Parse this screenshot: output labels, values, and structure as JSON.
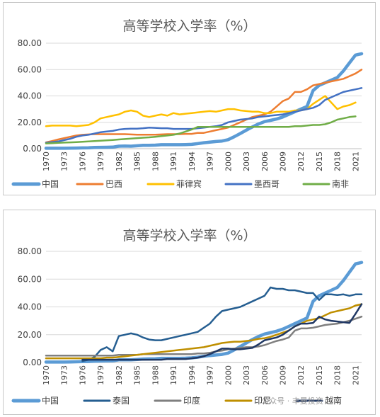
{
  "watermark": "公众号 · 丰曼投资",
  "chart_data": [
    {
      "type": "line",
      "title": "高等学校入学率（%）",
      "ylim": [
        0,
        80
      ],
      "yticks": [
        "0.00",
        "20.00",
        "40.00",
        "60.00",
        "80.00"
      ],
      "x": [
        1970,
        1971,
        1972,
        1973,
        1974,
        1975,
        1976,
        1977,
        1978,
        1979,
        1980,
        1981,
        1982,
        1983,
        1984,
        1985,
        1986,
        1987,
        1988,
        1989,
        1990,
        1991,
        1992,
        1993,
        1994,
        1995,
        1996,
        1997,
        1998,
        1999,
        2000,
        2001,
        2002,
        2003,
        2004,
        2005,
        2006,
        2007,
        2008,
        2009,
        2010,
        2011,
        2012,
        2013,
        2014,
        2015,
        2016,
        2017,
        2018,
        2019,
        2020,
        2021,
        2022
      ],
      "xticks": [
        1970,
        1973,
        1976,
        1979,
        1982,
        1985,
        1988,
        1991,
        1994,
        1997,
        2000,
        2003,
        2006,
        2009,
        2012,
        2015,
        2018,
        2021
      ],
      "legend_position": "bottom",
      "grid": true,
      "series": [
        {
          "name": "中国",
          "color": "#5b9bd5",
          "width": 4.5,
          "values": [
            0.3,
            0.3,
            0.3,
            0.3,
            0.4,
            0.5,
            0.6,
            0.7,
            0.9,
            1.0,
            1.1,
            1.2,
            1.9,
            2.0,
            1.9,
            2.2,
            2.5,
            2.6,
            2.7,
            3.0,
            3.0,
            3.0,
            3.0,
            3.1,
            3.3,
            3.8,
            4.5,
            5.0,
            5.4,
            5.8,
            6.8,
            9.0,
            11.5,
            14.0,
            16.5,
            18.7,
            20.5,
            21.5,
            22.5,
            24.0,
            26.0,
            28.0,
            30.0,
            32.0,
            44.0,
            48.0,
            50.0,
            52.0,
            54.0,
            59.0,
            65.0,
            71.0,
            72.0
          ]
        },
        {
          "name": "巴西",
          "color": "#ed7d31",
          "width": 2.5,
          "values": [
            4.8,
            5.8,
            7.0,
            8.0,
            9.0,
            10.0,
            10.5,
            10.8,
            11.0,
            11.0,
            11.0,
            11.0,
            11.0,
            11.0,
            10.8,
            10.6,
            10.6,
            10.6,
            10.6,
            10.8,
            11.0,
            11.0,
            11.0,
            11.2,
            11.2,
            12.0,
            12.0,
            13.0,
            14.0,
            15.0,
            16.0,
            18.0,
            20.0,
            22.0,
            24.0,
            25.0,
            26.0,
            28.0,
            32.0,
            36.0,
            38.0,
            43.0,
            43.0,
            45.0,
            48.0,
            49.0,
            50.0,
            51.0,
            52.0,
            53.0,
            55.0,
            57.0,
            60.0
          ]
        },
        {
          "name": "菲律宾",
          "color": "#ffc000",
          "width": 2.5,
          "values": [
            17.0,
            17.5,
            17.5,
            17.5,
            17.5,
            17.0,
            17.5,
            18.0,
            20.0,
            23.0,
            24.0,
            25.0,
            26.0,
            28.0,
            29.0,
            28.0,
            25.0,
            24.0,
            25.0,
            26.0,
            25.0,
            27.0,
            26.0,
            26.5,
            27.0,
            27.5,
            28.0,
            28.5,
            28.0,
            29.0,
            30.0,
            30.0,
            29.0,
            28.5,
            28.0,
            28.0,
            27.0,
            27.0,
            28.0,
            28.0,
            28.0,
            29.0,
            29.0,
            30.0,
            34.0,
            37.0,
            40.0,
            35.0,
            30.0,
            32.0,
            33.0,
            35.0,
            null
          ]
        },
        {
          "name": "墨西哥",
          "color": "#4472c4",
          "width": 2.5,
          "values": [
            4.5,
            5.0,
            5.5,
            6.5,
            7.5,
            9.0,
            10.0,
            10.5,
            11.5,
            12.5,
            13.0,
            13.5,
            14.5,
            15.0,
            15.2,
            15.2,
            15.5,
            16.0,
            15.8,
            15.5,
            15.5,
            15.0,
            15.0,
            15.0,
            15.0,
            15.5,
            16.0,
            16.5,
            17.0,
            18.0,
            20.0,
            21.0,
            22.0,
            22.5,
            23.0,
            24.0,
            24.5,
            25.0,
            25.5,
            26.0,
            27.0,
            28.0,
            29.0,
            30.0,
            31.0,
            33.0,
            37.0,
            39.0,
            41.0,
            43.0,
            44.0,
            45.0,
            46.0
          ]
        },
        {
          "name": "南非",
          "color": "#70ad47",
          "width": 2.5,
          "values": [
            4.0,
            4.2,
            4.4,
            4.6,
            4.8,
            5.0,
            5.2,
            5.5,
            5.8,
            6.0,
            6.3,
            6.6,
            7.0,
            7.3,
            7.6,
            8.0,
            8.3,
            8.6,
            9.0,
            9.5,
            10.0,
            10.5,
            11.5,
            13.0,
            14.5,
            16.5,
            16.5,
            16.5,
            16.5,
            16.5,
            16.5,
            16.5,
            16.5,
            16.5,
            16.5,
            16.5,
            16.5,
            16.5,
            16.5,
            16.5,
            16.5,
            17.0,
            17.0,
            17.5,
            18.0,
            18.0,
            18.5,
            20.0,
            22.0,
            23.0,
            24.0,
            24.5,
            null
          ]
        }
      ]
    },
    {
      "type": "line",
      "title": "高等学校入学率（%）",
      "ylim": [
        0,
        80
      ],
      "yticks": [
        "0.00",
        "20.00",
        "40.00",
        "60.00",
        "80.00"
      ],
      "x": [
        1970,
        1971,
        1972,
        1973,
        1974,
        1975,
        1976,
        1977,
        1978,
        1979,
        1980,
        1981,
        1982,
        1983,
        1984,
        1985,
        1986,
        1987,
        1988,
        1989,
        1990,
        1991,
        1992,
        1993,
        1994,
        1995,
        1996,
        1997,
        1998,
        1999,
        2000,
        2001,
        2002,
        2003,
        2004,
        2005,
        2006,
        2007,
        2008,
        2009,
        2010,
        2011,
        2012,
        2013,
        2014,
        2015,
        2016,
        2017,
        2018,
        2019,
        2020,
        2021,
        2022
      ],
      "xticks": [
        1970,
        1973,
        1976,
        1979,
        1982,
        1985,
        1988,
        1991,
        1994,
        1997,
        2000,
        2003,
        2006,
        2009,
        2012,
        2015,
        2018,
        2021
      ],
      "legend_position": "bottom",
      "grid": true,
      "series": [
        {
          "name": "中国",
          "color": "#5b9bd5",
          "width": 4.5,
          "values": [
            0.3,
            0.3,
            0.3,
            0.3,
            0.4,
            0.5,
            0.6,
            0.7,
            0.9,
            1.0,
            1.1,
            1.2,
            1.9,
            2.0,
            1.9,
            2.2,
            2.5,
            2.6,
            2.7,
            3.0,
            3.0,
            3.0,
            3.0,
            3.1,
            3.3,
            3.8,
            4.5,
            5.0,
            5.4,
            5.8,
            6.8,
            9.0,
            11.5,
            14.0,
            16.5,
            18.7,
            20.5,
            21.5,
            22.5,
            24.0,
            26.0,
            28.0,
            30.0,
            32.0,
            44.0,
            48.0,
            50.0,
            52.0,
            54.0,
            59.0,
            65.0,
            71.0,
            72.0
          ]
        },
        {
          "name": "泰国",
          "color": "#255e91",
          "width": 2.5,
          "values": [
            null,
            null,
            null,
            null,
            null,
            null,
            1.0,
            2.0,
            4.0,
            9.0,
            11.0,
            8.0,
            19.0,
            20.0,
            21.0,
            20.0,
            18.0,
            16.5,
            16.0,
            16.0,
            17.0,
            18.0,
            19.0,
            20.0,
            21.0,
            22.0,
            25.0,
            28.0,
            33.0,
            37.0,
            38.0,
            39.0,
            40.0,
            42.0,
            44.0,
            46.0,
            48.0,
            54.0,
            53.0,
            53.0,
            52.0,
            52.0,
            51.0,
            50.0,
            50.0,
            45.0,
            49.0,
            49.0,
            48.5,
            49.0,
            48.0,
            49.0,
            49.0
          ]
        },
        {
          "name": "印度",
          "color": "#7f7f7f",
          "width": 2.5,
          "values": [
            5.0,
            5.0,
            5.0,
            5.0,
            5.0,
            5.0,
            5.0,
            5.0,
            5.0,
            5.0,
            5.0,
            5.0,
            5.5,
            5.5,
            5.5,
            5.5,
            6.0,
            6.0,
            6.0,
            6.0,
            6.0,
            6.0,
            6.0,
            6.0,
            6.0,
            6.5,
            6.5,
            7.0,
            8.0,
            8.5,
            9.5,
            10.0,
            10.5,
            11.0,
            11.0,
            11.5,
            12.5,
            14.0,
            15.5,
            16.5,
            18.0,
            23.0,
            24.5,
            24.5,
            25.0,
            26.0,
            27.0,
            27.5,
            28.0,
            29.0,
            30.0,
            31.5,
            33.0
          ]
        },
        {
          "name": "印尼",
          "color": "#bf8f00",
          "width": 2.5,
          "values": [
            3.0,
            3.0,
            3.0,
            3.0,
            3.0,
            3.0,
            3.0,
            3.0,
            3.0,
            3.0,
            3.5,
            3.5,
            4.0,
            4.5,
            5.0,
            5.5,
            6.0,
            6.5,
            7.0,
            7.5,
            8.0,
            8.5,
            9.0,
            9.5,
            10.0,
            10.5,
            11.0,
            12.0,
            13.0,
            14.0,
            14.5,
            15.0,
            15.0,
            15.5,
            16.0,
            17.0,
            17.5,
            18.5,
            20.0,
            21.5,
            23.0,
            26.0,
            28.0,
            30.0,
            31.0,
            32.0,
            34.0,
            36.0,
            37.0,
            38.0,
            39.0,
            41.0,
            42.0
          ]
        },
        {
          "name": "越南",
          "color": "#203864",
          "width": 2.5,
          "values": [
            null,
            null,
            null,
            null,
            null,
            null,
            2.0,
            2.0,
            2.0,
            2.0,
            2.0,
            2.0,
            2.0,
            2.0,
            2.0,
            2.0,
            2.0,
            2.0,
            2.0,
            2.0,
            2.5,
            2.5,
            2.5,
            2.5,
            3.0,
            3.5,
            4.5,
            6.0,
            8.0,
            10.0,
            10.0,
            9.5,
            9.5,
            10.0,
            10.5,
            13.0,
            16.0,
            17.0,
            18.0,
            20.0,
            23.0,
            26.0,
            28.0,
            28.0,
            28.5,
            33.0,
            31.0,
            30.0,
            29.5,
            29.0,
            28.5,
            35.0,
            42.0
          ]
        }
      ]
    }
  ]
}
